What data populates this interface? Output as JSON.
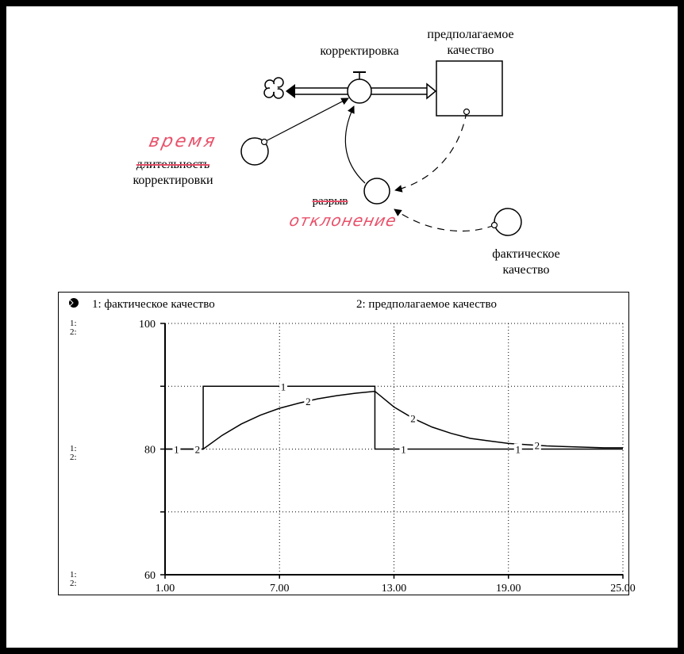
{
  "diagram": {
    "flow_label": "корректировка",
    "stock_label_line1": "предполагаемое",
    "stock_label_line2": "качество",
    "time_label_line1": "длительность",
    "time_label_line2": "корректировки",
    "time_handwritten": "время",
    "gap_label": "разрыв",
    "gap_handwritten": "отклонение",
    "actual_label_line1": "фактическое",
    "actual_label_line2": "качество"
  },
  "graph": {
    "series1_legend": "1: фактическое качество",
    "series2_legend": "2: предполагаемое качество",
    "y_scale_marks": [
      "1:",
      "2:"
    ],
    "series_markers": [
      "1",
      "2"
    ]
  },
  "chart_data": {
    "type": "line",
    "xlim": [
      1,
      25
    ],
    "ylim": [
      60,
      100
    ],
    "x_ticks": [
      "1.00",
      "7.00",
      "13.00",
      "19.00",
      "25.00"
    ],
    "y_ticks": [
      "100",
      "80",
      "60"
    ],
    "grid": true,
    "series": [
      {
        "name": "фактическое качество",
        "points": [
          [
            1,
            80
          ],
          [
            3,
            80
          ],
          [
            3,
            90
          ],
          [
            12,
            90
          ],
          [
            12,
            80
          ],
          [
            25,
            80
          ]
        ]
      },
      {
        "name": "предполагаемое качество",
        "points": [
          [
            1,
            80
          ],
          [
            3,
            80
          ],
          [
            4,
            82.2
          ],
          [
            5,
            84.0
          ],
          [
            6,
            85.4
          ],
          [
            7,
            86.5
          ],
          [
            8,
            87.3
          ],
          [
            9,
            88.0
          ],
          [
            10,
            88.5
          ],
          [
            11,
            88.9
          ],
          [
            12,
            89.2
          ],
          [
            13,
            86.7
          ],
          [
            14,
            84.9
          ],
          [
            15,
            83.5
          ],
          [
            16,
            82.5
          ],
          [
            17,
            81.7
          ],
          [
            18,
            81.3
          ],
          [
            19,
            80.9
          ],
          [
            20,
            80.7
          ],
          [
            21,
            80.5
          ],
          [
            22,
            80.4
          ],
          [
            23,
            80.3
          ],
          [
            24,
            80.2
          ],
          [
            25,
            80.2
          ]
        ]
      }
    ]
  }
}
